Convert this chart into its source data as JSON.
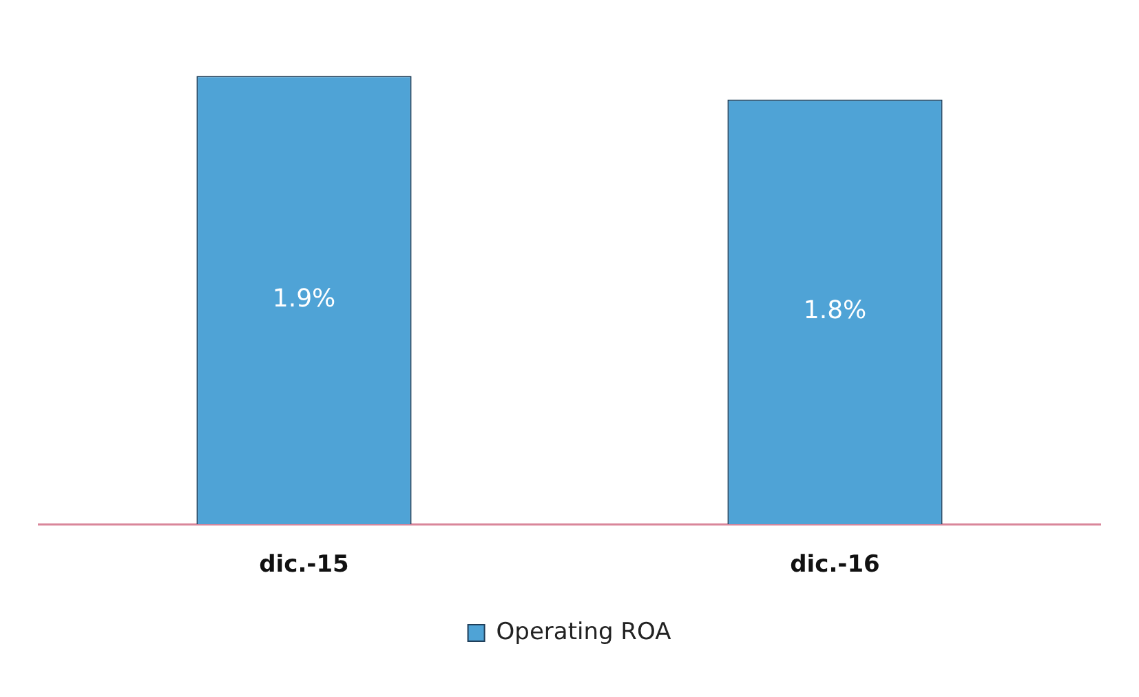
{
  "chart_data": {
    "type": "bar",
    "categories": [
      "dic.-15",
      "dic.-16"
    ],
    "series": [
      {
        "name": "Operating ROA",
        "color": "#4fa3d6",
        "values": [
          1.9,
          1.8
        ],
        "value_labels": [
          "1.9%",
          "1.8%"
        ]
      }
    ],
    "legend": "bottom",
    "grid": false
  }
}
